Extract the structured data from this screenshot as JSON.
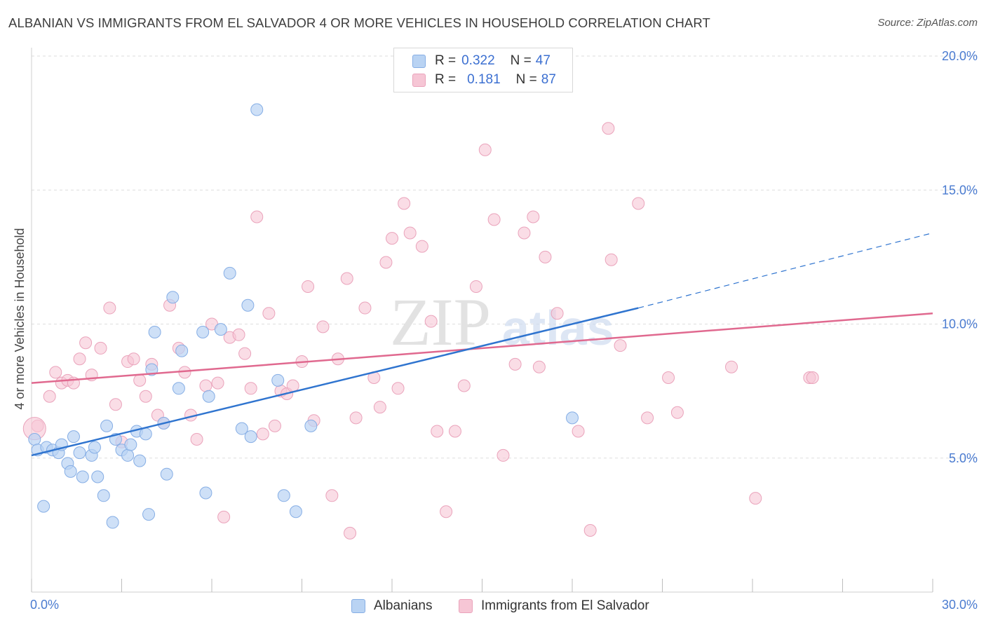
{
  "title": "ALBANIAN VS IMMIGRANTS FROM EL SALVADOR 4 OR MORE VEHICLES IN HOUSEHOLD CORRELATION CHART",
  "source": "Source: ZipAtlas.com",
  "watermark": {
    "zip": "ZIP",
    "atlas": "atlas"
  },
  "colors": {
    "blue_fill": "#b9d3f3",
    "blue_stroke": "#86aee5",
    "blue_line": "#2f74cf",
    "pink_fill": "#f6c6d5",
    "pink_stroke": "#eaa3bb",
    "pink_line": "#e0698f",
    "grid": "#dddddd",
    "tick_label": "#4a7bd0"
  },
  "legend_top": {
    "rows": [
      {
        "r_label": "R = ",
        "r_value": "0.322",
        "n_label": "N = ",
        "n_value": "47"
      },
      {
        "r_label": "R = ",
        "r_value": "0.181",
        "n_label": "N = ",
        "n_value": "87"
      }
    ]
  },
  "legend_bottom": [
    "Albanians",
    "Immigrants from El Salvador"
  ],
  "chart_data": {
    "type": "scatter",
    "title": "ALBANIAN VS IMMIGRANTS FROM EL SALVADOR 4 OR MORE VEHICLES IN HOUSEHOLD CORRELATION CHART",
    "xlabel": "",
    "ylabel": "4 or more Vehicles in Household",
    "xlim": [
      0,
      30
    ],
    "ylim": [
      0,
      20
    ],
    "x_tick_labels": [
      "0.0%",
      "30.0%"
    ],
    "y_ticks": [
      5,
      10,
      15,
      20
    ],
    "y_tick_labels": [
      "5.0%",
      "10.0%",
      "15.0%",
      "20.0%"
    ],
    "grid": true,
    "legend_position": "top-center",
    "series": [
      {
        "name": "Albanians",
        "R": 0.322,
        "N": 47,
        "trend": {
          "x0": 0,
          "y0": 5.1,
          "x1": 20.2,
          "y1": 10.6,
          "dashed_to_x": 30,
          "dashed_to_y": 13.4
        },
        "points": [
          [
            0.1,
            5.7
          ],
          [
            0.2,
            5.3
          ],
          [
            0.4,
            3.2
          ],
          [
            0.5,
            5.4
          ],
          [
            0.7,
            5.3
          ],
          [
            0.9,
            5.2
          ],
          [
            1.0,
            5.5
          ],
          [
            1.2,
            4.8
          ],
          [
            1.3,
            4.5
          ],
          [
            1.4,
            5.8
          ],
          [
            1.6,
            5.2
          ],
          [
            1.7,
            4.3
          ],
          [
            2.0,
            5.1
          ],
          [
            2.1,
            5.4
          ],
          [
            2.2,
            4.3
          ],
          [
            2.4,
            3.6
          ],
          [
            2.5,
            6.2
          ],
          [
            2.7,
            2.6
          ],
          [
            2.8,
            5.7
          ],
          [
            3.0,
            5.3
          ],
          [
            3.2,
            5.1
          ],
          [
            3.3,
            5.5
          ],
          [
            3.5,
            6.0
          ],
          [
            3.6,
            4.9
          ],
          [
            3.8,
            5.9
          ],
          [
            3.9,
            2.9
          ],
          [
            4.0,
            8.3
          ],
          [
            4.1,
            9.7
          ],
          [
            4.4,
            6.3
          ],
          [
            4.5,
            4.4
          ],
          [
            4.7,
            11.0
          ],
          [
            4.9,
            7.6
          ],
          [
            5.0,
            9.0
          ],
          [
            5.7,
            9.7
          ],
          [
            5.8,
            3.7
          ],
          [
            5.9,
            7.3
          ],
          [
            6.3,
            9.8
          ],
          [
            6.6,
            11.9
          ],
          [
            7.0,
            6.1
          ],
          [
            7.2,
            10.7
          ],
          [
            7.3,
            5.8
          ],
          [
            7.5,
            18.0
          ],
          [
            8.2,
            7.9
          ],
          [
            8.4,
            3.6
          ],
          [
            8.8,
            3.0
          ],
          [
            9.3,
            6.2
          ],
          [
            18.0,
            6.5
          ]
        ]
      },
      {
        "name": "Immigrants from El Salvador",
        "R": 0.181,
        "N": 87,
        "trend": {
          "x0": 0,
          "y0": 7.8,
          "x1": 30,
          "y1": 10.4
        },
        "points": [
          [
            0.2,
            6.2
          ],
          [
            0.6,
            7.3
          ],
          [
            0.8,
            8.2
          ],
          [
            1.0,
            7.8
          ],
          [
            1.2,
            7.9
          ],
          [
            1.4,
            7.8
          ],
          [
            1.6,
            8.7
          ],
          [
            1.8,
            9.3
          ],
          [
            2.0,
            8.1
          ],
          [
            2.3,
            9.1
          ],
          [
            2.6,
            10.6
          ],
          [
            2.8,
            7.0
          ],
          [
            3.0,
            5.6
          ],
          [
            3.2,
            8.6
          ],
          [
            3.4,
            8.7
          ],
          [
            3.6,
            7.9
          ],
          [
            3.8,
            7.3
          ],
          [
            4.0,
            8.5
          ],
          [
            4.2,
            6.6
          ],
          [
            4.4,
            6.3
          ],
          [
            4.6,
            10.7
          ],
          [
            4.9,
            9.1
          ],
          [
            5.1,
            8.2
          ],
          [
            5.3,
            6.6
          ],
          [
            5.5,
            5.7
          ],
          [
            5.8,
            7.7
          ],
          [
            6.0,
            10.0
          ],
          [
            6.2,
            7.8
          ],
          [
            6.4,
            2.8
          ],
          [
            6.6,
            9.5
          ],
          [
            6.9,
            9.6
          ],
          [
            7.1,
            8.9
          ],
          [
            7.3,
            7.6
          ],
          [
            7.5,
            14.0
          ],
          [
            7.7,
            5.9
          ],
          [
            7.9,
            10.4
          ],
          [
            8.1,
            6.2
          ],
          [
            8.3,
            7.5
          ],
          [
            8.5,
            7.4
          ],
          [
            8.7,
            7.7
          ],
          [
            9.0,
            8.6
          ],
          [
            9.2,
            11.4
          ],
          [
            9.4,
            6.4
          ],
          [
            9.7,
            9.9
          ],
          [
            10.0,
            3.6
          ],
          [
            10.2,
            8.7
          ],
          [
            10.5,
            11.7
          ],
          [
            10.6,
            2.2
          ],
          [
            10.8,
            6.5
          ],
          [
            11.1,
            10.6
          ],
          [
            11.4,
            8.0
          ],
          [
            11.6,
            6.9
          ],
          [
            11.8,
            12.3
          ],
          [
            12.0,
            13.2
          ],
          [
            12.2,
            7.6
          ],
          [
            12.4,
            14.5
          ],
          [
            12.6,
            13.4
          ],
          [
            13.0,
            12.9
          ],
          [
            13.3,
            10.1
          ],
          [
            13.5,
            6.0
          ],
          [
            13.8,
            3.0
          ],
          [
            14.1,
            6.0
          ],
          [
            14.4,
            7.7
          ],
          [
            14.8,
            11.4
          ],
          [
            15.1,
            16.5
          ],
          [
            15.4,
            13.9
          ],
          [
            15.7,
            5.1
          ],
          [
            16.1,
            8.5
          ],
          [
            16.4,
            13.4
          ],
          [
            16.7,
            14.0
          ],
          [
            16.9,
            8.4
          ],
          [
            17.1,
            12.5
          ],
          [
            17.5,
            10.4
          ],
          [
            18.2,
            6.0
          ],
          [
            18.6,
            2.3
          ],
          [
            19.2,
            17.3
          ],
          [
            19.3,
            12.4
          ],
          [
            19.6,
            9.2
          ],
          [
            20.2,
            14.5
          ],
          [
            20.5,
            6.5
          ],
          [
            21.2,
            8.0
          ],
          [
            21.5,
            6.7
          ],
          [
            23.3,
            8.4
          ],
          [
            24.1,
            3.5
          ],
          [
            25.9,
            8.0
          ],
          [
            26.0,
            8.0
          ],
          [
            0.1,
            6.1
          ]
        ]
      }
    ]
  }
}
